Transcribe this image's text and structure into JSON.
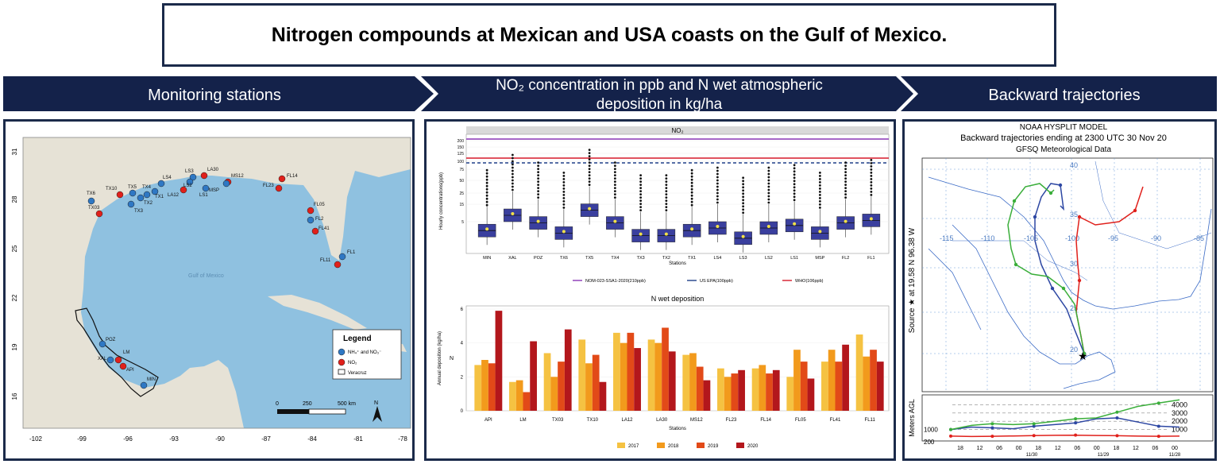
{
  "title": "Nitrogen compounds at Mexican and USA coasts on the Gulf of Mexico.",
  "banners": [
    {
      "label": "Monitoring stations"
    },
    {
      "label": "NO₂ concentration in ppb and N wet atmospheric deposition in kg/ha"
    },
    {
      "label": "Backward trajectories"
    }
  ],
  "map": {
    "sea_label": "Gulf of Mexico",
    "lat_ticks": [
      "31",
      "28",
      "25",
      "22",
      "19",
      "16"
    ],
    "lon_ticks": [
      "-102",
      "-99",
      "-96",
      "-93",
      "-90",
      "-87",
      "-84",
      "-81",
      "-78"
    ],
    "legend": {
      "title": "Legend",
      "items": [
        "NH₄⁺ and NO₃⁻",
        "NO₂",
        "Veracruz"
      ]
    },
    "scale_labels": [
      "0",
      "250",
      "500 km"
    ],
    "north": "N",
    "colors": {
      "blue_station": "#2f78c4",
      "red_station": "#e0201b"
    },
    "stations": [
      {
        "name": "TX6",
        "type": "blue"
      },
      {
        "name": "TX10",
        "type": "red"
      },
      {
        "name": "TX5",
        "type": "blue"
      },
      {
        "name": "TX4",
        "type": "blue"
      },
      {
        "name": "TX2",
        "type": "blue"
      },
      {
        "name": "TX1",
        "type": "blue"
      },
      {
        "name": "TX03",
        "type": "red"
      },
      {
        "name": "TX3",
        "type": "blue"
      },
      {
        "name": "LS4",
        "type": "blue"
      },
      {
        "name": "LS3",
        "type": "blue"
      },
      {
        "name": "LS2",
        "type": "blue"
      },
      {
        "name": "LA12",
        "type": "red"
      },
      {
        "name": "LA30",
        "type": "red"
      },
      {
        "name": "LS1",
        "type": "blue"
      },
      {
        "name": "MS12",
        "type": "red"
      },
      {
        "name": "MSP",
        "type": "blue"
      },
      {
        "name": "FL23",
        "type": "red"
      },
      {
        "name": "FL14",
        "type": "red"
      },
      {
        "name": "FL05",
        "type": "red"
      },
      {
        "name": "FL2",
        "type": "blue"
      },
      {
        "name": "FL41",
        "type": "red"
      },
      {
        "name": "FL1",
        "type": "blue"
      },
      {
        "name": "FL11",
        "type": "red"
      },
      {
        "name": "POZ",
        "type": "blue"
      },
      {
        "name": "XAL",
        "type": "blue"
      },
      {
        "name": "LM",
        "type": "red"
      },
      {
        "name": "API",
        "type": "red"
      },
      {
        "name": "MIN",
        "type": "blue"
      }
    ]
  },
  "chart_data": [
    {
      "type": "box",
      "title": "NO₂",
      "xlabel": "Stations",
      "ylabel": "Hourly concentrations(ppb)",
      "categories": [
        "MIN",
        "XAL",
        "POZ",
        "TX6",
        "TX5",
        "TX4",
        "TX3",
        "TX2",
        "TX1",
        "LS4",
        "LS3",
        "LS2",
        "LS1",
        "MSP",
        "FL2",
        "FL1"
      ],
      "yticks": [
        "200",
        "150",
        "125",
        "100",
        "75",
        "50",
        "25",
        "15",
        "5"
      ],
      "medians": [
        4,
        10,
        7,
        3,
        12,
        7,
        2,
        2,
        4,
        5,
        1,
        5,
        6,
        3,
        7,
        8
      ],
      "references": [
        {
          "name": "NOM-023-SSA1-2020(210ppb)",
          "value": 210,
          "color": "#8a35b5"
        },
        {
          "name": "US EPA(100ppb)",
          "value": 100,
          "color": "#1f3f88"
        },
        {
          "name": "WHO(106ppb)",
          "value": 106,
          "color": "#d61a2a"
        }
      ]
    },
    {
      "type": "bar",
      "title": "N wet deposition",
      "xlabel": "Stations",
      "ylabel": "Annual deposition (kg/ha)",
      "y_axis_letter": "N",
      "ylim": [
        0,
        6
      ],
      "yticks": [
        "0",
        "2",
        "4",
        "6"
      ],
      "categories": [
        "API",
        "LM",
        "TX03",
        "TX10",
        "LA12",
        "LA30",
        "MS12",
        "FL23",
        "FL14",
        "FL05",
        "FL41",
        "FL11"
      ],
      "series": [
        {
          "name": "2017",
          "color": "#f5c242",
          "values": [
            2.7,
            1.7,
            3.4,
            4.2,
            4.6,
            4.2,
            3.3,
            2.5,
            2.5,
            2.0,
            2.9,
            4.5
          ]
        },
        {
          "name": "2018",
          "color": "#f29a1c",
          "values": [
            3.0,
            1.8,
            2.0,
            2.8,
            4.0,
            4.0,
            3.4,
            2.0,
            2.7,
            3.6,
            3.6,
            3.2
          ]
        },
        {
          "name": "2019",
          "color": "#e24a18",
          "values": [
            2.8,
            1.1,
            2.9,
            3.3,
            4.6,
            4.9,
            2.6,
            2.2,
            2.2,
            2.9,
            2.9,
            3.6
          ]
        },
        {
          "name": "2020",
          "color": "#b3171c",
          "values": [
            5.9,
            4.1,
            4.8,
            1.7,
            3.7,
            3.5,
            1.8,
            2.4,
            2.4,
            1.9,
            3.9,
            2.9
          ]
        }
      ]
    },
    {
      "type": "line",
      "title": "NOAA HYSPLIT MODEL",
      "subtitle": "Backward trajectories ending at 2300 UTC 30 Nov 20",
      "subtitle2": "GFSQ Meteorological Data",
      "side_label": "Source ★ at 19.58 N 96.38 W",
      "lon_labels": [
        "-115",
        "-110",
        "-105",
        "-100",
        "-95",
        "-90",
        "-85"
      ],
      "lat_labels": [
        "40",
        "35",
        "30",
        "25",
        "20"
      ],
      "height_ylabel": "Meters AGL",
      "height_ticks": [
        "4000",
        "3000",
        "2000",
        "1000"
      ],
      "height_start_labels": [
        "1000",
        "200"
      ],
      "time_ticks": [
        "18",
        "12",
        "06",
        "00",
        "18",
        "12",
        "06",
        "00",
        "18",
        "12",
        "06",
        "00"
      ],
      "date_labels": [
        "11/30",
        "11/29",
        "11/28"
      ],
      "series": [
        {
          "name": "red",
          "color": "#e0201b",
          "heights": [
            200,
            150,
            180,
            220,
            260,
            300,
            320,
            280,
            250,
            200,
            180,
            200
          ]
        },
        {
          "name": "blue",
          "color": "#2d47a3",
          "heights": [
            1000,
            1300,
            1200,
            1100,
            1400,
            1600,
            1800,
            2300,
            2400,
            1900,
            1400,
            1300
          ]
        },
        {
          "name": "green",
          "color": "#3aae3a",
          "heights": [
            1000,
            1500,
            1700,
            1600,
            1700,
            2000,
            2300,
            2400,
            3100,
            3800,
            4200,
            4600
          ]
        }
      ]
    }
  ]
}
